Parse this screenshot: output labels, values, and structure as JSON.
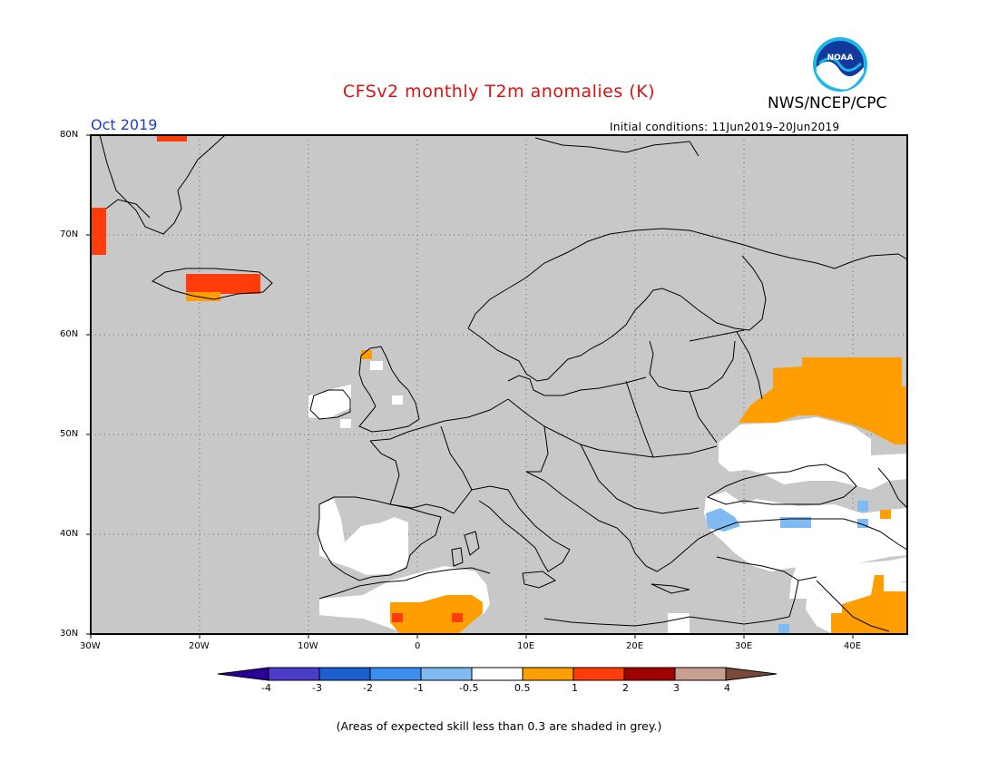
{
  "header": {
    "title": "CFSv2 monthly T2m anomalies (K)",
    "agency": "NWS/NCEP/CPC",
    "logo_text": "NOAA",
    "valid_month": "Oct 2019",
    "initial_conditions": "Initial conditions: 11Jun2019–20Jun2019"
  },
  "axes": {
    "lat_ticks": [
      "80N",
      "70N",
      "60N",
      "50N",
      "40N",
      "30N"
    ],
    "lon_ticks": [
      "30W",
      "20W",
      "10W",
      "0",
      "10E",
      "20E",
      "30E",
      "40E"
    ]
  },
  "colorbar": {
    "labels": [
      "-4",
      "-3",
      "-2",
      "-1",
      "-0.5",
      "0.5",
      "1",
      "2",
      "3",
      "4"
    ],
    "colors": {
      "lt_-4": "#2a0099",
      "-4_-3": "#4b3cc9",
      "-3_-2": "#1c5fd1",
      "-2_-1": "#3c8ef0",
      "-1_-0.5": "#7fbaf2",
      "-0.5_0.5": "#ffffff",
      "0.5_1": "#ff9e00",
      "1_2": "#ff3c0a",
      "2_3": "#a00000",
      "3_4": "#c9a090",
      "gt_4": "#7a4a38"
    },
    "low_skill_shade": "#c8c8c8"
  },
  "footnote": "(Areas of expected skill less than 0.3 are shaded in grey.)"
}
